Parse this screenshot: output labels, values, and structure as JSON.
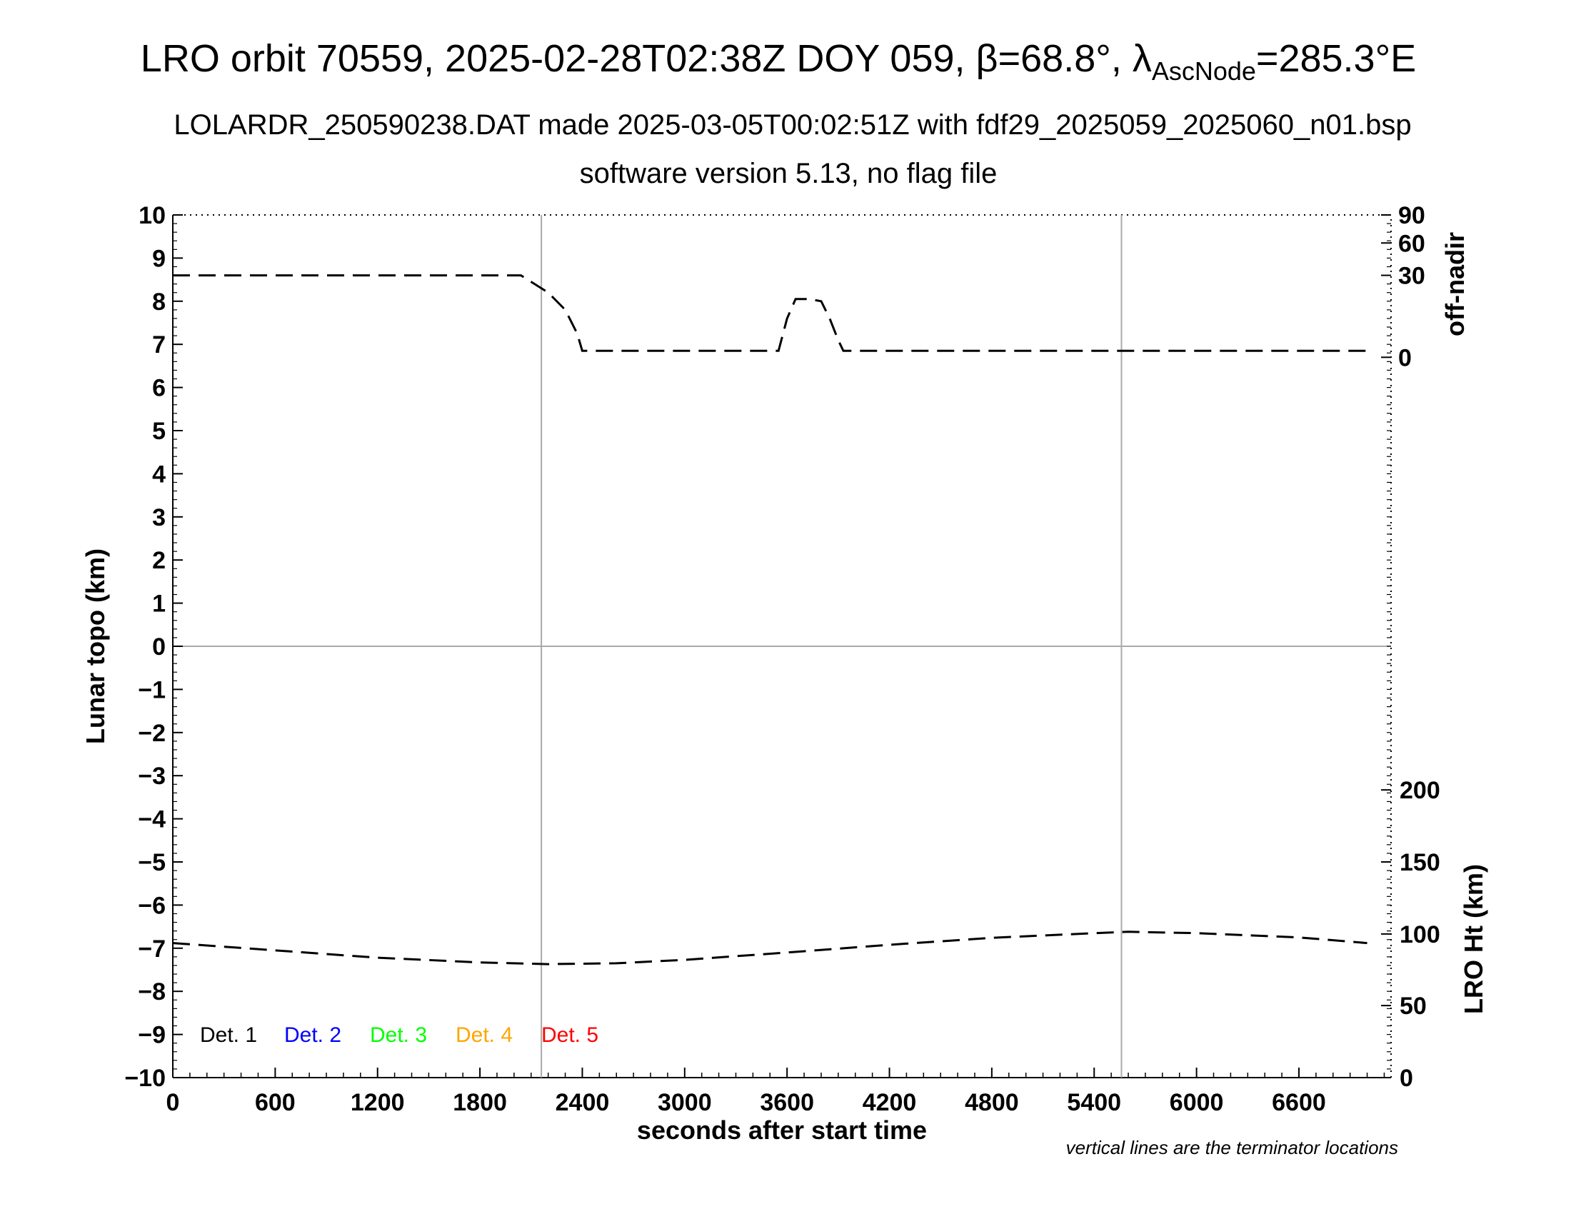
{
  "chart_data": {
    "type": "line",
    "title": {
      "prefix": "LRO orbit 70559, 2025-02-28T02:38Z DOY 059, ",
      "beta": "β=68.8°, ",
      "lambda": "λ",
      "lambda_sub": "AscNode",
      "lambda_value": "=285.3°E"
    },
    "subtitle": "LOLARDR_250590238.DAT made 2025-03-05T00:02:51Z with fdf29_2025059_2025060_n01.bsp",
    "subtitle2": "software version 5.13, no flag file",
    "xlabel": "seconds after start time",
    "ylabel": "Lunar topo (km)",
    "y2label_top": "off-nadir",
    "y2label_bottom": "LRO Ht (km)",
    "note": "vertical lines are the terminator locations",
    "xlim": [
      0,
      7140
    ],
    "ylim": [
      -10,
      10
    ],
    "x_ticks": [
      0,
      600,
      1200,
      1800,
      2400,
      3000,
      3600,
      4200,
      4800,
      5400,
      6000,
      6600
    ],
    "y_ticks": [
      10,
      9,
      8,
      7,
      6,
      5,
      4,
      3,
      2,
      1,
      0,
      -1,
      -2,
      -3,
      -4,
      -5,
      -6,
      -7,
      -8,
      -9,
      -10
    ],
    "y_tick_labels": [
      "10",
      "9",
      "8",
      "7",
      "6",
      "5",
      "4",
      "3",
      "2",
      "1",
      "0",
      "−1",
      "−2",
      "−3",
      "−4",
      "−5",
      "−6",
      "−7",
      "−8",
      "−9",
      "−10"
    ],
    "off_nadir_ticks": [
      {
        "label": "90",
        "y": 10
      },
      {
        "label": "60",
        "y": 9.35
      },
      {
        "label": "30",
        "y": 8.6
      },
      {
        "label": "0",
        "y": 6.7
      }
    ],
    "lro_ht_ticks": [
      {
        "label": "200",
        "y": -3.33
      },
      {
        "label": "150",
        "y": -5
      },
      {
        "label": "100",
        "y": -6.67
      },
      {
        "label": "50",
        "y": -8.33
      },
      {
        "label": "0",
        "y": -10
      }
    ],
    "terminators": [
      2160,
      5560
    ],
    "legend": [
      {
        "label": "Det. 1",
        "color": "#000000"
      },
      {
        "label": "Det. 2",
        "color": "#0000ff"
      },
      {
        "label": "Det. 3",
        "color": "#00ff00"
      },
      {
        "label": "Det. 4",
        "color": "#ffa500"
      },
      {
        "label": "Det. 5",
        "color": "#ff0000"
      }
    ],
    "series": [
      {
        "key": "off_nadir",
        "x": [
          0,
          2040,
          2100,
          2200,
          2300,
          2370,
          2400,
          3500,
          3550,
          3600,
          3650,
          3730,
          3800,
          3850,
          3900,
          3930,
          7000
        ],
        "y": [
          8.6,
          8.6,
          8.45,
          8.2,
          7.8,
          7.25,
          6.85,
          6.85,
          6.85,
          7.6,
          8.05,
          8.05,
          8.0,
          7.6,
          7.1,
          6.85,
          6.85
        ]
      },
      {
        "key": "lro_ht",
        "x": [
          0,
          600,
          1200,
          1800,
          2200,
          2600,
          3000,
          3600,
          4200,
          4800,
          5400,
          5600,
          6000,
          6600,
          7000
        ],
        "y": [
          -6.88,
          -7.05,
          -7.22,
          -7.33,
          -7.37,
          -7.35,
          -7.27,
          -7.1,
          -6.92,
          -6.76,
          -6.65,
          -6.62,
          -6.65,
          -6.75,
          -6.88
        ]
      }
    ]
  }
}
